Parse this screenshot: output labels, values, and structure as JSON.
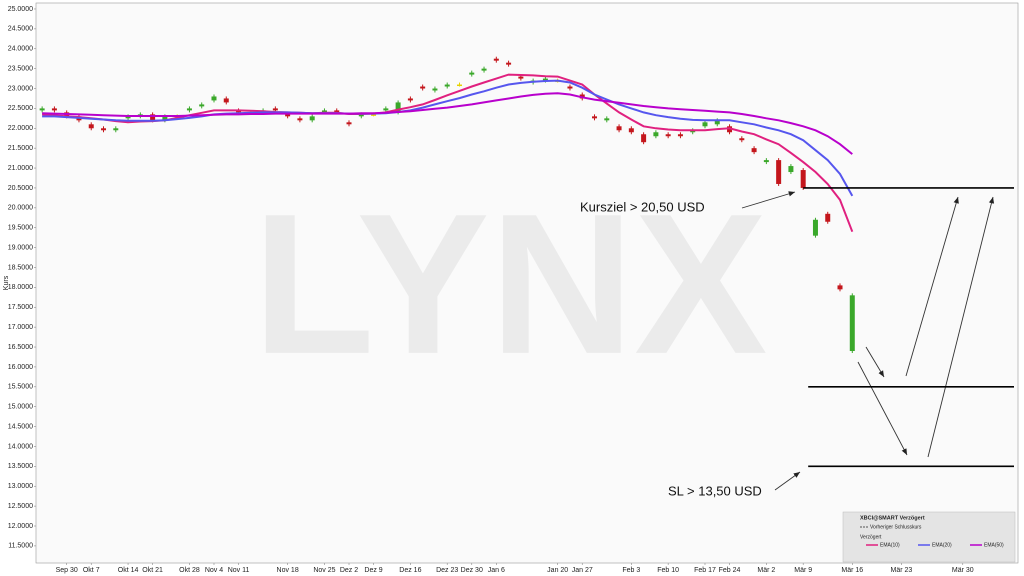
{
  "chart_data": {
    "type": "candlestick",
    "watermark": "LYNX",
    "ylabel": "Kurs",
    "categories": [
      null,
      null,
      "Sep 30",
      null,
      "Okt 7",
      null,
      null,
      "Okt 14",
      null,
      "Okt 21",
      null,
      null,
      "Okt 28",
      null,
      "Nov 4",
      null,
      "Nov 11",
      null,
      null,
      null,
      "Nov 18",
      null,
      null,
      "Nov 25",
      null,
      "Dez 2",
      null,
      "Dez 9",
      null,
      null,
      "Dez 16",
      null,
      null,
      "Dez 23",
      null,
      "Dez 30",
      null,
      "Jan 6",
      null,
      null,
      null,
      null,
      "Jan 20",
      null,
      "Jan 27",
      null,
      null,
      null,
      "Feb 3",
      null,
      null,
      "Feb 10",
      null,
      null,
      "Feb 17",
      null,
      "Feb 24",
      null,
      null,
      "Mär 2",
      null,
      null,
      "Mär 9",
      null,
      null,
      null,
      "Mär 16",
      null,
      null,
      null,
      "Mär 23",
      null,
      null,
      null,
      null,
      "Mär 30",
      null,
      null,
      null,
      null
    ],
    "open": [
      22.45,
      22.5,
      22.4,
      22.3,
      22.1,
      22.0,
      21.95,
      22.25,
      22.3,
      22.35,
      22.2,
      22.3,
      22.45,
      22.55,
      22.7,
      22.75,
      22.45,
      22.4,
      22.4,
      22.5,
      22.35,
      22.25,
      22.2,
      22.4,
      22.45,
      22.15,
      22.3,
      22.35,
      22.45,
      22.4,
      22.75,
      23.05,
      22.95,
      23.05,
      23.1,
      23.35,
      23.45,
      23.75,
      23.65,
      23.3,
      23.15,
      23.2,
      23.2,
      23.05,
      22.85,
      22.3,
      22.2,
      22.05,
      22.0,
      21.85,
      21.8,
      21.85,
      21.85,
      21.9,
      22.05,
      22.1,
      22.05,
      21.75,
      21.5,
      21.15,
      21.2,
      20.9,
      20.95,
      19.3,
      19.85,
      18.05,
      16.4,
      null,
      null,
      null,
      null,
      null,
      null,
      null,
      null,
      null,
      null,
      null,
      null,
      null
    ],
    "high": [
      22.55,
      22.55,
      22.45,
      22.35,
      22.15,
      22.05,
      22.05,
      22.35,
      22.4,
      22.4,
      22.35,
      22.35,
      22.55,
      22.65,
      22.85,
      22.8,
      22.5,
      22.45,
      22.5,
      22.55,
      22.4,
      22.3,
      22.35,
      22.5,
      22.5,
      22.2,
      22.4,
      22.4,
      22.55,
      22.7,
      22.8,
      23.1,
      23.05,
      23.15,
      23.15,
      23.45,
      23.55,
      23.8,
      23.7,
      23.35,
      23.25,
      23.3,
      23.25,
      23.1,
      22.9,
      22.35,
      22.3,
      22.1,
      22.05,
      21.9,
      21.95,
      21.9,
      21.9,
      22.0,
      22.2,
      22.25,
      22.1,
      21.8,
      21.55,
      21.25,
      21.25,
      21.1,
      21.0,
      19.75,
      19.9,
      18.1,
      17.85,
      null,
      null,
      null,
      null,
      null,
      null,
      null,
      null,
      null,
      null,
      null,
      null,
      null
    ],
    "low": [
      22.4,
      22.4,
      22.25,
      22.15,
      21.95,
      21.9,
      21.9,
      22.2,
      22.25,
      22.15,
      22.15,
      22.25,
      22.4,
      22.5,
      22.65,
      22.6,
      22.35,
      22.35,
      22.35,
      22.4,
      22.25,
      22.15,
      22.15,
      22.35,
      22.35,
      22.05,
      22.25,
      22.3,
      22.4,
      22.35,
      22.65,
      22.95,
      22.9,
      23.0,
      23.05,
      23.3,
      23.4,
      23.65,
      23.55,
      23.2,
      23.1,
      23.15,
      23.15,
      22.95,
      22.7,
      22.2,
      22.15,
      21.9,
      21.85,
      21.6,
      21.75,
      21.75,
      21.75,
      21.85,
      22.0,
      22.05,
      21.85,
      21.65,
      21.35,
      21.1,
      20.55,
      20.85,
      20.45,
      19.25,
      19.6,
      17.9,
      16.35,
      null,
      null,
      null,
      null,
      null,
      null,
      null,
      null,
      null,
      null,
      null,
      null,
      null
    ],
    "close": [
      22.5,
      22.45,
      22.3,
      22.2,
      22.0,
      21.95,
      22.0,
      22.3,
      22.35,
      22.2,
      22.3,
      22.3,
      22.5,
      22.6,
      22.8,
      22.65,
      22.4,
      22.4,
      22.45,
      22.45,
      22.3,
      22.2,
      22.3,
      22.45,
      22.4,
      22.1,
      22.35,
      22.35,
      22.5,
      22.65,
      22.7,
      23.0,
      23.0,
      23.1,
      23.1,
      23.4,
      23.5,
      23.7,
      23.6,
      23.25,
      23.2,
      23.25,
      23.2,
      23.0,
      22.75,
      22.25,
      22.25,
      21.95,
      21.9,
      21.65,
      21.9,
      21.8,
      21.8,
      21.95,
      22.15,
      22.2,
      21.9,
      21.7,
      21.4,
      21.2,
      20.6,
      21.05,
      20.5,
      19.7,
      19.65,
      17.95,
      17.8,
      null,
      null,
      null,
      null,
      null,
      null,
      null,
      null,
      null,
      null,
      null,
      null,
      null
    ],
    "up_color": "#3aa82a",
    "down_color": "#c4161c",
    "neutral_color": "#e6d200",
    "series": [
      {
        "name": "EMA(10)",
        "color": "#e0207f",
        "values": [
          22.35,
          22.33,
          22.3,
          22.28,
          22.25,
          22.22,
          22.18,
          22.15,
          22.17,
          22.18,
          22.2,
          22.26,
          22.33,
          22.39,
          22.45,
          22.45,
          22.45,
          22.44,
          22.43,
          22.41,
          22.4,
          22.39,
          22.38,
          22.39,
          22.39,
          22.36,
          22.36,
          22.37,
          22.4,
          22.47,
          22.53,
          22.6,
          22.71,
          22.83,
          22.94,
          23.05,
          23.15,
          23.25,
          23.35,
          23.34,
          23.33,
          23.31,
          23.3,
          23.2,
          23.1,
          22.85,
          22.62,
          22.4,
          22.22,
          22.05,
          22.0,
          21.97,
          21.95,
          21.95,
          21.95,
          21.98,
          22.0,
          21.92,
          21.85,
          21.72,
          21.6,
          21.38,
          21.15,
          20.9,
          20.6,
          20.2,
          19.4,
          null,
          null,
          null,
          null,
          null,
          null,
          null,
          null,
          null,
          null,
          null,
          null,
          null
        ]
      },
      {
        "name": "EMA(20)",
        "color": "#5656ee",
        "values": [
          22.3,
          22.3,
          22.28,
          22.26,
          22.24,
          22.22,
          22.2,
          22.19,
          22.19,
          22.19,
          22.2,
          22.23,
          22.26,
          22.3,
          22.35,
          22.37,
          22.38,
          22.39,
          22.4,
          22.4,
          22.4,
          22.39,
          22.38,
          22.38,
          22.38,
          22.37,
          22.37,
          22.37,
          22.38,
          22.41,
          22.45,
          22.52,
          22.6,
          22.68,
          22.76,
          22.85,
          22.93,
          23.02,
          23.1,
          23.14,
          23.17,
          23.19,
          23.2,
          23.15,
          23.02,
          22.85,
          22.72,
          22.6,
          22.5,
          22.4,
          22.33,
          22.28,
          22.24,
          22.21,
          22.2,
          22.2,
          22.2,
          22.15,
          22.1,
          22.02,
          21.95,
          21.85,
          21.7,
          21.45,
          21.2,
          20.85,
          20.3,
          null,
          null,
          null,
          null,
          null,
          null,
          null,
          null,
          null,
          null,
          null,
          null,
          null
        ]
      },
      {
        "name": "EMA(50)",
        "color": "#b800cc",
        "values": [
          22.38,
          22.37,
          22.36,
          22.35,
          22.34,
          22.33,
          22.32,
          22.31,
          22.31,
          22.31,
          22.31,
          22.31,
          22.32,
          22.33,
          22.34,
          22.35,
          22.35,
          22.36,
          22.36,
          22.37,
          22.37,
          22.37,
          22.37,
          22.37,
          22.37,
          22.37,
          22.38,
          22.38,
          22.39,
          22.41,
          22.43,
          22.46,
          22.49,
          22.52,
          22.56,
          22.6,
          22.65,
          22.7,
          22.75,
          22.8,
          22.84,
          22.87,
          22.88,
          22.85,
          22.78,
          22.72,
          22.68,
          22.64,
          22.6,
          22.56,
          22.53,
          22.5,
          22.48,
          22.46,
          22.44,
          22.42,
          22.4,
          22.36,
          22.31,
          22.25,
          22.2,
          22.13,
          22.05,
          21.95,
          21.8,
          21.6,
          21.35,
          null,
          null,
          null,
          null,
          null,
          null,
          null,
          null,
          null,
          null,
          null,
          null,
          null
        ]
      }
    ],
    "levels": [
      {
        "value": 20.5,
        "label": "Kursziel > 20,50 USD"
      },
      {
        "value": 15.5
      },
      {
        "value": 13.5,
        "label": "SL > 13,50 USD"
      }
    ],
    "ylim": [
      11.07,
      25.15
    ],
    "yticks": [
      {
        "value": 11.5,
        "label": "11.5000"
      },
      {
        "value": 12,
        "label": "12.0000"
      },
      {
        "value": 12.5,
        "label": "12.5000"
      },
      {
        "value": 13,
        "label": "13.0000"
      },
      {
        "value": 13.5,
        "label": "13.5000"
      },
      {
        "value": 14,
        "label": "14.0000"
      },
      {
        "value": 14.5,
        "label": "14.5000"
      },
      {
        "value": 15,
        "label": "15.0000"
      },
      {
        "value": 15.5,
        "label": "15.5000"
      },
      {
        "value": 16,
        "label": "16.0000"
      },
      {
        "value": 16.5,
        "label": "16.5000"
      },
      {
        "value": 17,
        "label": "17.0000"
      },
      {
        "value": 17.5,
        "label": "17.5000"
      },
      {
        "value": 18,
        "label": "18.0000"
      },
      {
        "value": 18.5,
        "label": "18.5000"
      },
      {
        "value": 19,
        "label": "19.0000"
      },
      {
        "value": 19.5,
        "label": "19.5000"
      },
      {
        "value": 20,
        "label": "20.0000"
      },
      {
        "value": 20.5,
        "label": "20.5000"
      },
      {
        "value": 21,
        "label": "21.0000"
      },
      {
        "value": 21.5,
        "label": "21.5000"
      },
      {
        "value": 22,
        "label": "22.0000"
      },
      {
        "value": 22.5,
        "label": "22.5000"
      },
      {
        "value": 23,
        "label": "23.0000"
      },
      {
        "value": 23.5,
        "label": "23.5000"
      },
      {
        "value": 24,
        "label": "24.0000"
      },
      {
        "value": 24.5,
        "label": "24.5000"
      },
      {
        "value": 25,
        "label": "25.0000"
      }
    ],
    "legend": {
      "title": "XBCI@SMART Verzögert",
      "prior_close": "Vorheriger Schlusskurs",
      "section": "Verzögert"
    },
    "grid": false
  }
}
